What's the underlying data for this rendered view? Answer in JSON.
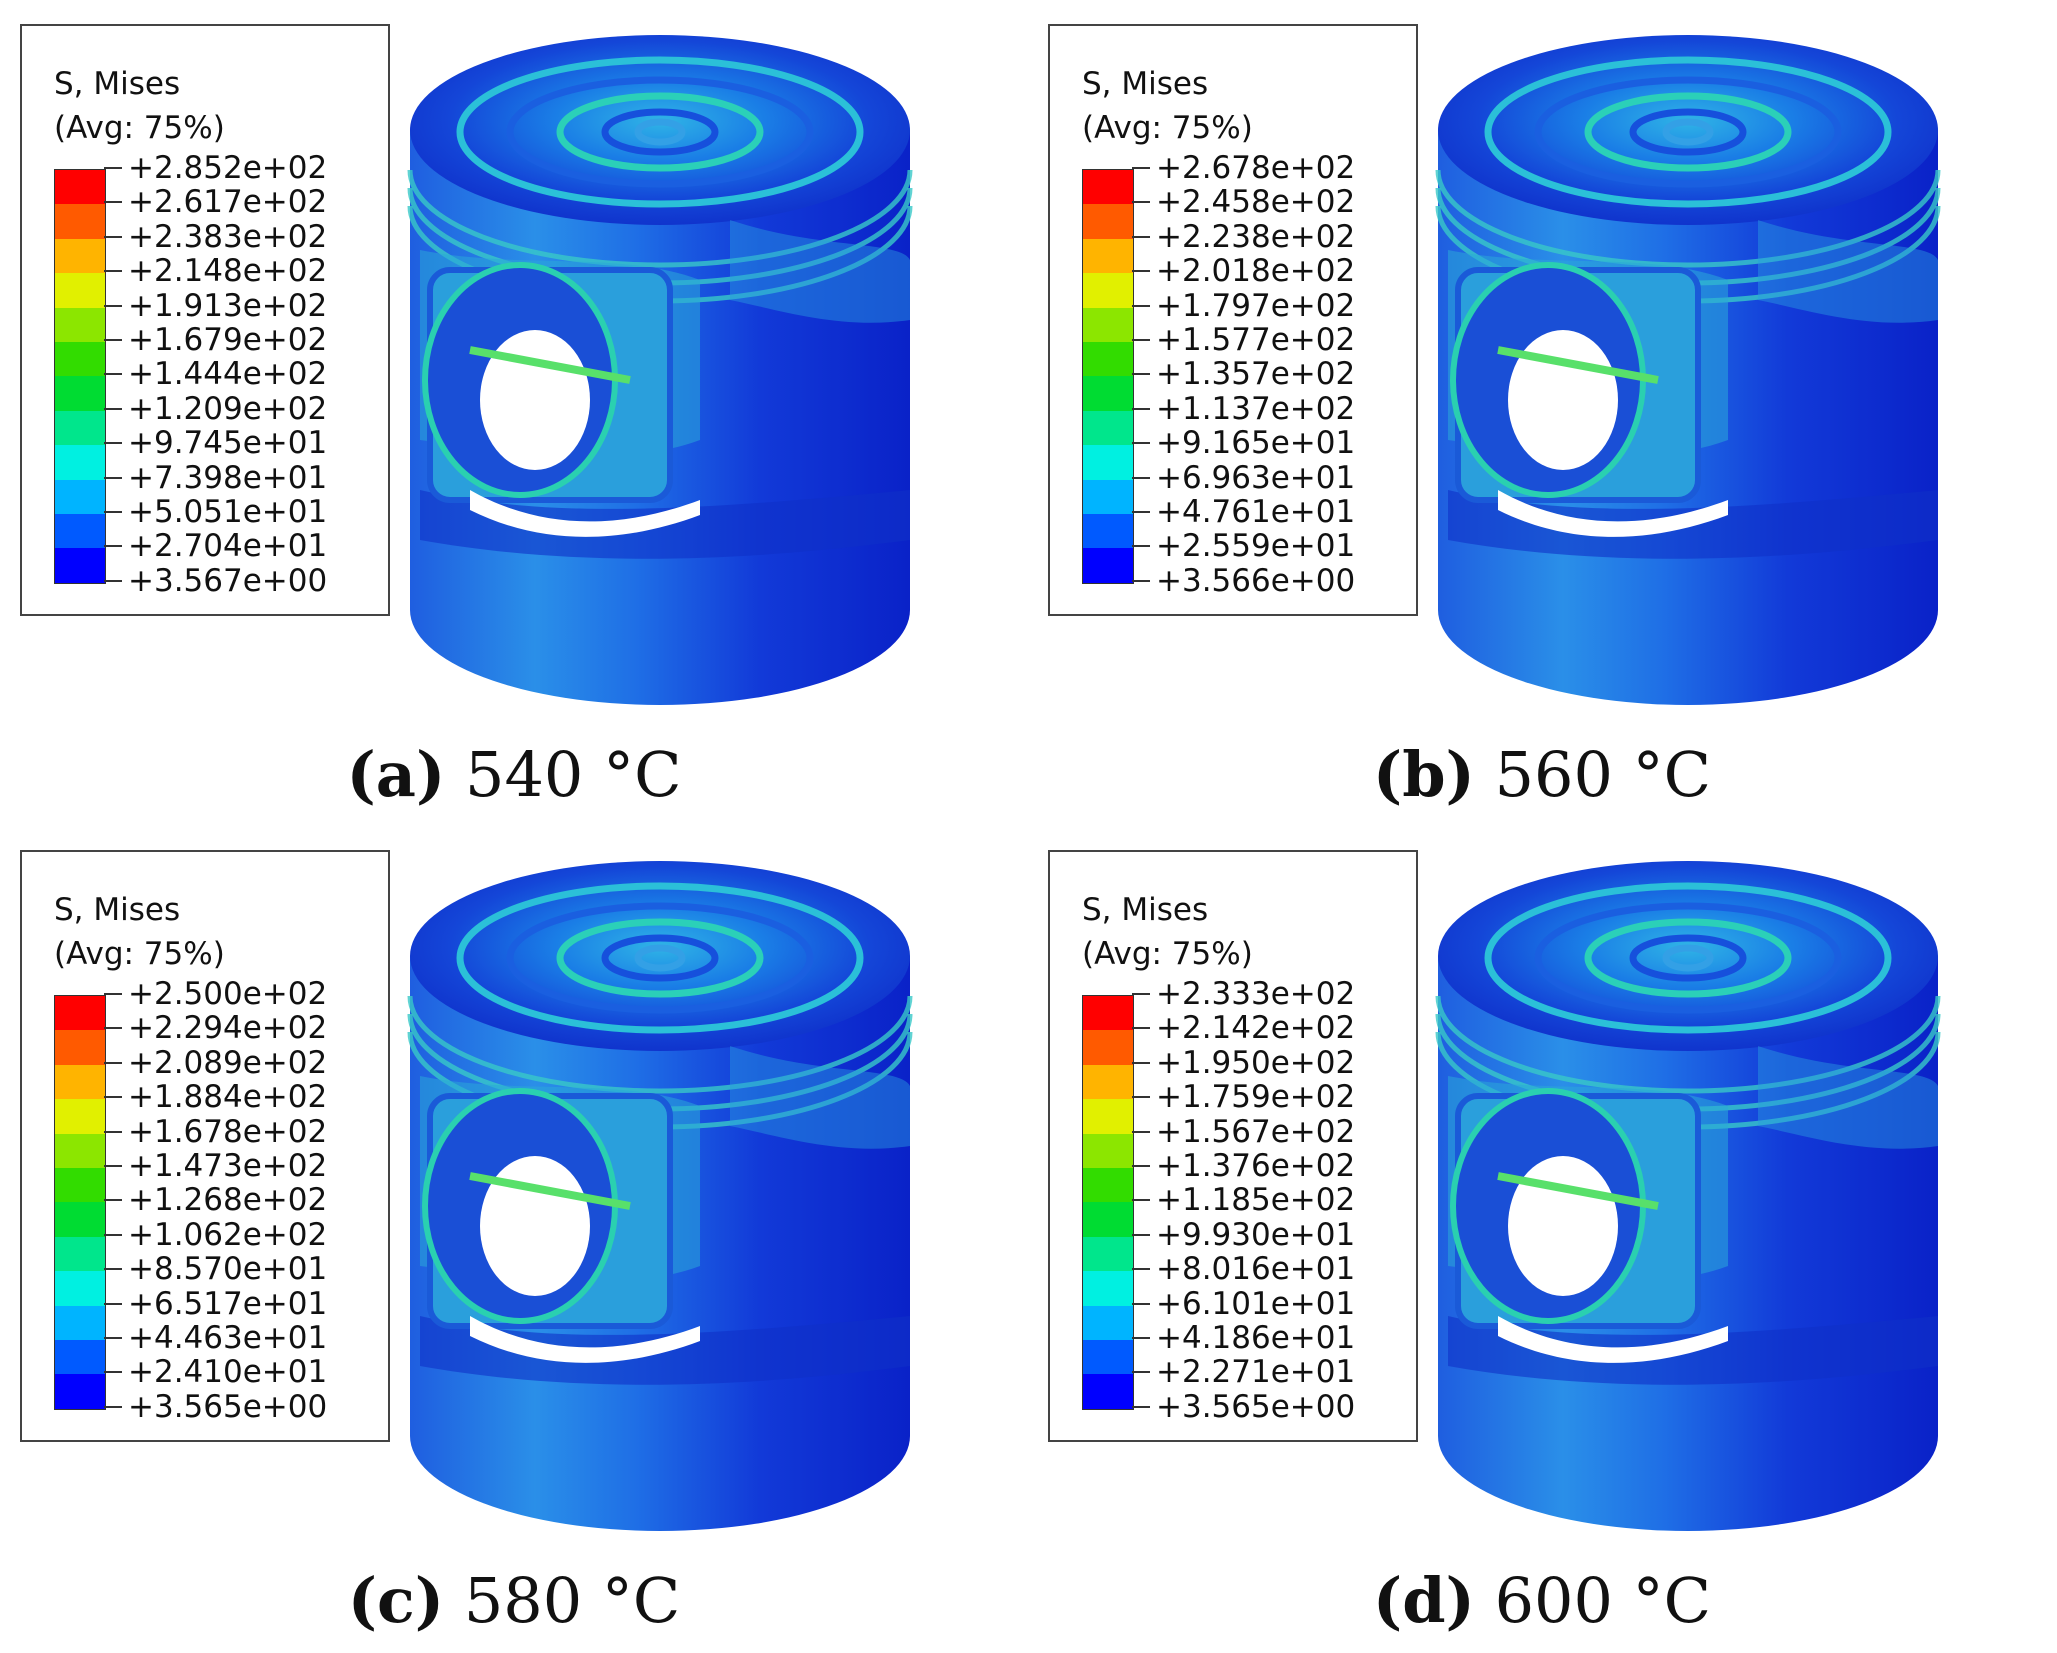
{
  "colors": [
    "#ff0000",
    "#ff5a00",
    "#ffb400",
    "#e1f000",
    "#8ce600",
    "#32dc00",
    "#00dc32",
    "#00e68c",
    "#00f0e1",
    "#00b4ff",
    "#005aff",
    "#0000ff"
  ],
  "panels": [
    {
      "legend_title_1": "S, Mises",
      "legend_title_2": "(Avg: 75%)",
      "values": [
        "+2.852e+02",
        "+2.617e+02",
        "+2.383e+02",
        "+2.148e+02",
        "+1.913e+02",
        "+1.679e+02",
        "+1.444e+02",
        "+1.209e+02",
        "+9.745e+01",
        "+7.398e+01",
        "+5.051e+01",
        "+2.704e+01",
        "+3.567e+00"
      ],
      "caption_label": "(a)",
      "caption_text": " 540 °C"
    },
    {
      "legend_title_1": "S, Mises",
      "legend_title_2": "(Avg: 75%)",
      "values": [
        "+2.678e+02",
        "+2.458e+02",
        "+2.238e+02",
        "+2.018e+02",
        "+1.797e+02",
        "+1.577e+02",
        "+1.357e+02",
        "+1.137e+02",
        "+9.165e+01",
        "+6.963e+01",
        "+4.761e+01",
        "+2.559e+01",
        "+3.566e+00"
      ],
      "caption_label": "(b)",
      "caption_text": " 560 °C"
    },
    {
      "legend_title_1": "S, Mises",
      "legend_title_2": "(Avg: 75%)",
      "values": [
        "+2.500e+02",
        "+2.294e+02",
        "+2.089e+02",
        "+1.884e+02",
        "+1.678e+02",
        "+1.473e+02",
        "+1.268e+02",
        "+1.062e+02",
        "+8.570e+01",
        "+6.517e+01",
        "+4.463e+01",
        "+2.410e+01",
        "+3.565e+00"
      ],
      "caption_label": "(c)",
      "caption_text": " 580 °C"
    },
    {
      "legend_title_1": "S, Mises",
      "legend_title_2": "(Avg: 75%)",
      "values": [
        "+2.333e+02",
        "+2.142e+02",
        "+1.950e+02",
        "+1.759e+02",
        "+1.567e+02",
        "+1.376e+02",
        "+1.185e+02",
        "+9.930e+01",
        "+8.016e+01",
        "+6.101e+01",
        "+4.186e+01",
        "+2.271e+01",
        "+3.565e+00"
      ],
      "caption_label": "(d)",
      "caption_text": " 600 °C"
    }
  ]
}
